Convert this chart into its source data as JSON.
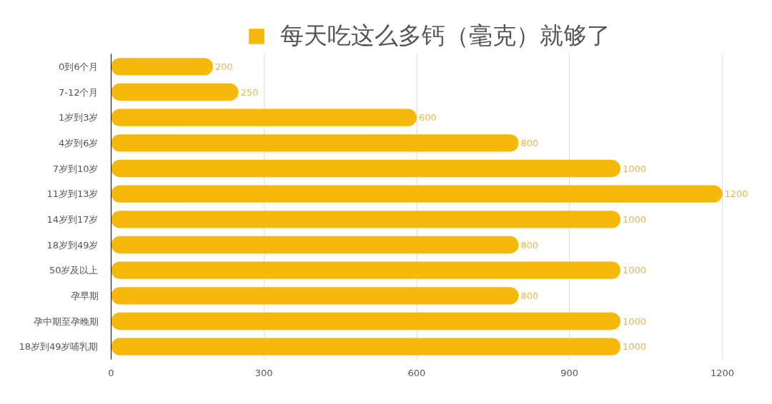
{
  "chart_data": {
    "type": "bar",
    "orientation": "horizontal",
    "categories": [
      "0到6个月",
      "7-12个月",
      "1岁到3岁",
      "4岁到6岁",
      "7岁到10岁",
      "11岁到13岁",
      "14岁到17岁",
      "18岁到49岁",
      "50岁及以上",
      "孕早期",
      "孕中期至孕晚期",
      "18岁到49岁哺乳期"
    ],
    "series": [
      {
        "name": "每天吃这么多钙（毫克）就够了",
        "color": "#f6b80a",
        "values": [
          200,
          250,
          600,
          800,
          1000,
          1200,
          1000,
          800,
          1000,
          800,
          1000,
          1000
        ]
      }
    ],
    "xlim": [
      0,
      1200
    ],
    "xticks": [
      0,
      300,
      600,
      900,
      1200
    ],
    "grid": "x",
    "legend": "top",
    "data_labels": true
  }
}
